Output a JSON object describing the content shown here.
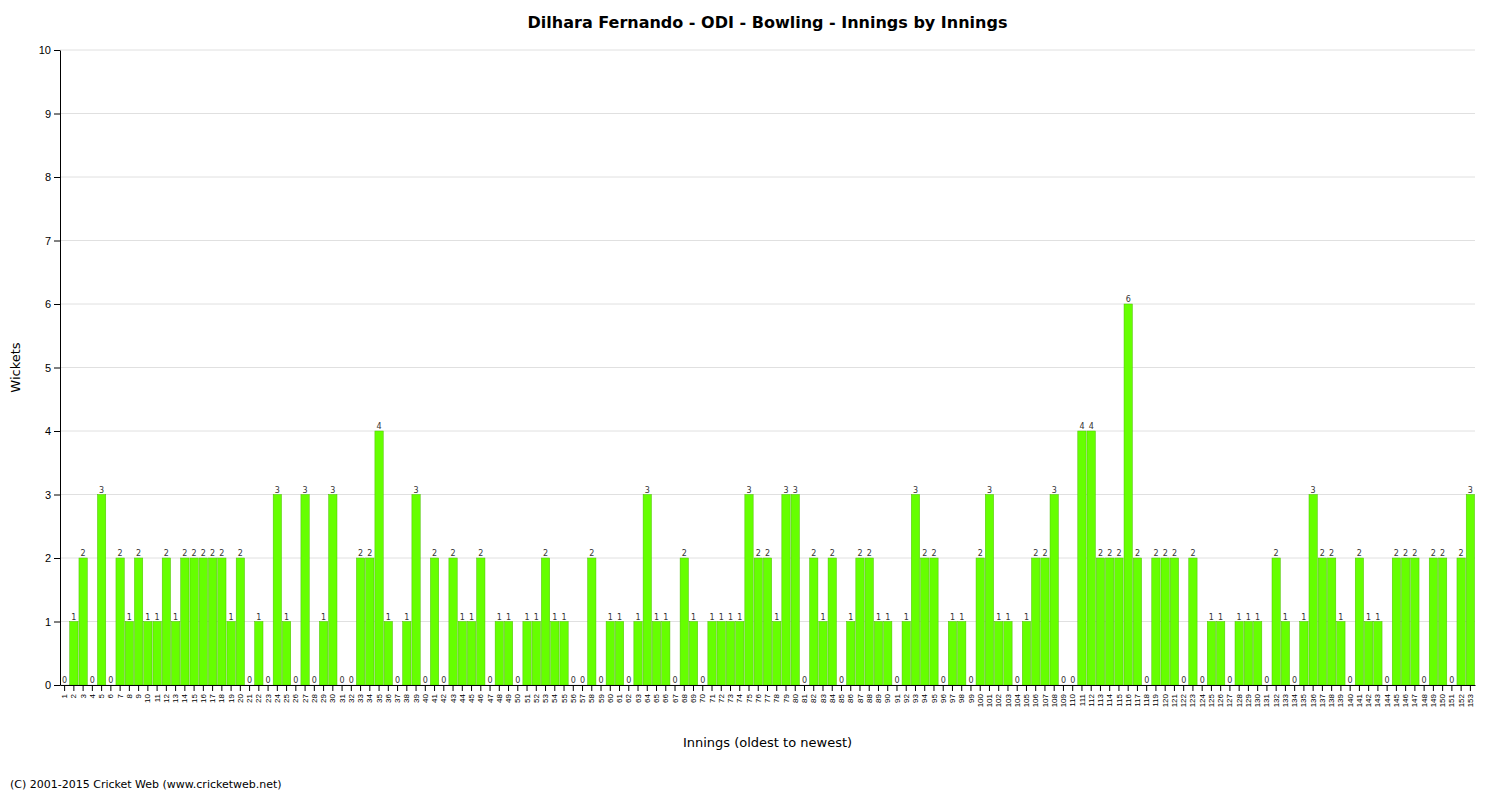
{
  "chart_data": {
    "type": "bar",
    "title": "Dilhara Fernando - ODI - Bowling - Innings by Innings",
    "x_label": "Innings (oldest to newest)",
    "y_label": "Wickets",
    "categories": [
      "1",
      "2",
      "3",
      "4",
      "5",
      "6",
      "7",
      "8",
      "9",
      "10",
      "11",
      "12",
      "13",
      "14",
      "15",
      "16",
      "17",
      "18",
      "19",
      "20",
      "21",
      "22",
      "23",
      "24",
      "25",
      "26",
      "27",
      "28",
      "29",
      "30",
      "31",
      "32",
      "33",
      "34",
      "35",
      "36",
      "37",
      "38",
      "39",
      "40",
      "41",
      "42",
      "43",
      "44",
      "45",
      "46",
      "47",
      "48",
      "49",
      "50",
      "51",
      "52",
      "53",
      "54",
      "55",
      "56",
      "57",
      "58",
      "59",
      "60",
      "61",
      "62",
      "63",
      "64",
      "65",
      "66",
      "67",
      "68",
      "69",
      "70",
      "71",
      "72",
      "73",
      "74",
      "75",
      "76",
      "77",
      "78",
      "79",
      "80",
      "81",
      "82",
      "83",
      "84",
      "85",
      "86",
      "87",
      "88",
      "89",
      "90",
      "91",
      "92",
      "93",
      "94",
      "95",
      "96",
      "97",
      "98",
      "99",
      "100",
      "101",
      "102",
      "103",
      "104",
      "105",
      "106",
      "107",
      "108",
      "109",
      "110",
      "111",
      "112",
      "113",
      "114",
      "115",
      "116",
      "117",
      "118",
      "119",
      "120",
      "121",
      "122",
      "123",
      "124",
      "125",
      "126",
      "127",
      "128",
      "129",
      "130",
      "131",
      "132",
      "133",
      "134",
      "135",
      "136",
      "137",
      "138",
      "139",
      "140",
      "141",
      "142",
      "143",
      "144",
      "145",
      "146",
      "147",
      "148",
      "149",
      "150",
      "151",
      "152",
      "153"
    ],
    "values": [
      0,
      1,
      2,
      0,
      3,
      0,
      2,
      1,
      2,
      1,
      1,
      2,
      1,
      2,
      2,
      2,
      2,
      2,
      1,
      2,
      0,
      1,
      0,
      3,
      1,
      0,
      3,
      0,
      1,
      3,
      0,
      0,
      2,
      2,
      4,
      1,
      0,
      1,
      3,
      0,
      2,
      0,
      2,
      1,
      1,
      2,
      0,
      1,
      1,
      0,
      1,
      1,
      2,
      1,
      1,
      0,
      0,
      2,
      0,
      1,
      1,
      0,
      1,
      3,
      1,
      1,
      0,
      2,
      1,
      0,
      1,
      1,
      1,
      1,
      3,
      2,
      2,
      1,
      3,
      3,
      0,
      2,
      1,
      2,
      0,
      1,
      2,
      2,
      1,
      1,
      0,
      1,
      3,
      2,
      2,
      0,
      1,
      1,
      0,
      2,
      3,
      1,
      1,
      0,
      1,
      2,
      2,
      3,
      0,
      0,
      4,
      4,
      2,
      2,
      2,
      6,
      2,
      0,
      2,
      2,
      2,
      0,
      2,
      0,
      1,
      1,
      0,
      1,
      1,
      1,
      0,
      2,
      1,
      0,
      1,
      3,
      2,
      2,
      1,
      0,
      2,
      1,
      1,
      0,
      2,
      2,
      2,
      0,
      2,
      2,
      0,
      2,
      3
    ],
    "color": "#66ff00",
    "ylim": [
      0,
      10
    ],
    "yticks": [
      0,
      1,
      2,
      3,
      4,
      5,
      6,
      7,
      8,
      9,
      10
    ],
    "grid": true,
    "data_labels": true,
    "annotations": [
      "(C) 2001-2015 Cricket Web (www.cricketweb.net)"
    ]
  }
}
